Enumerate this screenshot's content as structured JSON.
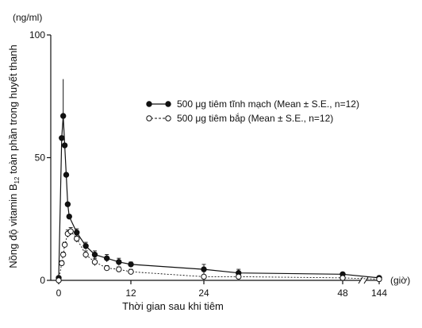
{
  "chart_data": {
    "type": "line",
    "title": "",
    "xlabel": "Thời gian sau khi tiêm",
    "ylabel_main": "Nồng độ vitamin B",
    "ylabel_sub": "12",
    "ylabel_rest": " toàn phần trong huyết thanh",
    "y_unit": "(ng/ml)",
    "x_unit": "(giờ)",
    "ylim": [
      0,
      100
    ],
    "y_ticks": [
      {
        "value": 0,
        "label": "0"
      },
      {
        "value": 50,
        "label": "50"
      },
      {
        "value": 100,
        "label": "100"
      }
    ],
    "x_ticks": [
      {
        "value": 0,
        "label": "0"
      },
      {
        "value": 12,
        "label": "12"
      },
      {
        "value": 24,
        "label": "24"
      },
      {
        "value": 48,
        "label": "48"
      },
      {
        "value": 144,
        "label": "144"
      }
    ],
    "x_axis_break": "between 48 and 144",
    "legend_position": "top-right",
    "series": [
      {
        "name": "500 μg tiêm tĩnh mạch (Mean ± S.E., n=12)",
        "marker": "filled-circle",
        "line": "solid",
        "color": "#111111",
        "points": [
          {
            "x": 0,
            "y": 1,
            "err": 0
          },
          {
            "x": 0.5,
            "y": 58,
            "err": 0
          },
          {
            "x": 0.75,
            "y": 67,
            "err": 0
          },
          {
            "x": 1,
            "y": 55,
            "err": 0
          },
          {
            "x": 1.25,
            "y": 43,
            "err": 0
          },
          {
            "x": 1.5,
            "y": 31,
            "err": 0
          },
          {
            "x": 1.75,
            "y": 26,
            "err": 0
          },
          {
            "x": 3,
            "y": 19.5,
            "err": 1.5
          },
          {
            "x": 4.5,
            "y": 14,
            "err": 1.5
          },
          {
            "x": 6,
            "y": 10.5,
            "err": 1.5
          },
          {
            "x": 8,
            "y": 9,
            "err": 1.5
          },
          {
            "x": 10,
            "y": 7.5,
            "err": 1.5
          },
          {
            "x": 12,
            "y": 6.5,
            "err": 1
          },
          {
            "x": 24,
            "y": 4.5,
            "err": 2
          },
          {
            "x": 30,
            "y": 3,
            "err": 1.5
          },
          {
            "x": 48,
            "y": 2.5,
            "err": 0.5
          },
          {
            "x": 144,
            "y": 1,
            "err": 0.5
          }
        ]
      },
      {
        "name": "500 μg tiêm bắp (Mean ± S.E., n=12)",
        "marker": "open-circle",
        "line": "dashed",
        "color": "#111111",
        "points": [
          {
            "x": 0,
            "y": 0,
            "err": 0
          },
          {
            "x": 0.5,
            "y": 7,
            "err": 1
          },
          {
            "x": 0.75,
            "y": 10.5,
            "err": 1
          },
          {
            "x": 1,
            "y": 14.5,
            "err": 1
          },
          {
            "x": 1.5,
            "y": 19,
            "err": 1.5
          },
          {
            "x": 2,
            "y": 20,
            "err": 1.5
          },
          {
            "x": 3,
            "y": 17,
            "err": 1.5
          },
          {
            "x": 4.5,
            "y": 10.5,
            "err": 1.5
          },
          {
            "x": 6,
            "y": 7.5,
            "err": 1.5
          },
          {
            "x": 8,
            "y": 5,
            "err": 1
          },
          {
            "x": 10,
            "y": 4.5,
            "err": 1
          },
          {
            "x": 12,
            "y": 3.5,
            "err": 1
          },
          {
            "x": 24,
            "y": 1.5,
            "err": 0.5
          },
          {
            "x": 30,
            "y": 1.5,
            "err": 0.5
          },
          {
            "x": 48,
            "y": 1,
            "err": 0.5
          },
          {
            "x": 144,
            "y": 0.5,
            "err": 0.3
          }
        ]
      }
    ]
  }
}
